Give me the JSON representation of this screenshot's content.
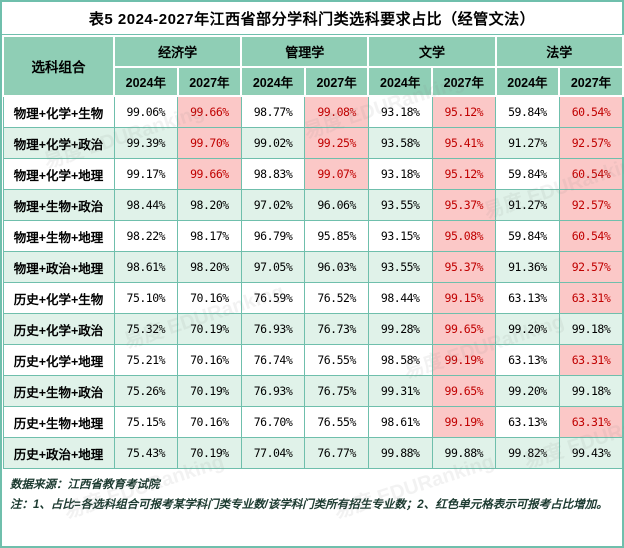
{
  "title": "表5 2024-2027年江西省部分学科门类选科要求占比（经管文法）",
  "colors": {
    "header_green": "#8fceb5",
    "stripe_green": "#e0f2e9",
    "highlight_pink": "#fbc8c7",
    "highlight_red_text": "#c00000",
    "grid_teal": "#6fbfac"
  },
  "table": {
    "corner_header": "选科组合",
    "groups": [
      {
        "key": "economics",
        "label": "经济学"
      },
      {
        "key": "management",
        "label": "管理学"
      },
      {
        "key": "literature",
        "label": "文学"
      },
      {
        "key": "law",
        "label": "法学"
      }
    ],
    "year_headers": [
      "2024年",
      "2027年"
    ],
    "rows": [
      {
        "combo": "物理+化学+生物",
        "values": [
          {
            "v": "99.06%",
            "red": false
          },
          {
            "v": "99.66%",
            "red": true
          },
          {
            "v": "98.77%",
            "red": false
          },
          {
            "v": "99.08%",
            "red": true
          },
          {
            "v": "93.18%",
            "red": false
          },
          {
            "v": "95.12%",
            "red": true
          },
          {
            "v": "59.84%",
            "red": false
          },
          {
            "v": "60.54%",
            "red": true
          }
        ]
      },
      {
        "combo": "物理+化学+政治",
        "values": [
          {
            "v": "99.39%",
            "red": false
          },
          {
            "v": "99.70%",
            "red": true
          },
          {
            "v": "99.02%",
            "red": false
          },
          {
            "v": "99.25%",
            "red": true
          },
          {
            "v": "93.58%",
            "red": false
          },
          {
            "v": "95.41%",
            "red": true
          },
          {
            "v": "91.27%",
            "red": false
          },
          {
            "v": "92.57%",
            "red": true
          }
        ]
      },
      {
        "combo": "物理+化学+地理",
        "values": [
          {
            "v": "99.17%",
            "red": false
          },
          {
            "v": "99.66%",
            "red": true
          },
          {
            "v": "98.83%",
            "red": false
          },
          {
            "v": "99.07%",
            "red": true
          },
          {
            "v": "93.18%",
            "red": false
          },
          {
            "v": "95.12%",
            "red": true
          },
          {
            "v": "59.84%",
            "red": false
          },
          {
            "v": "60.54%",
            "red": true
          }
        ]
      },
      {
        "combo": "物理+生物+政治",
        "values": [
          {
            "v": "98.44%",
            "red": false
          },
          {
            "v": "98.20%",
            "red": false
          },
          {
            "v": "97.02%",
            "red": false
          },
          {
            "v": "96.06%",
            "red": false
          },
          {
            "v": "93.55%",
            "red": false
          },
          {
            "v": "95.37%",
            "red": true
          },
          {
            "v": "91.27%",
            "red": false
          },
          {
            "v": "92.57%",
            "red": true
          }
        ]
      },
      {
        "combo": "物理+生物+地理",
        "values": [
          {
            "v": "98.22%",
            "red": false
          },
          {
            "v": "98.17%",
            "red": false
          },
          {
            "v": "96.79%",
            "red": false
          },
          {
            "v": "95.85%",
            "red": false
          },
          {
            "v": "93.15%",
            "red": false
          },
          {
            "v": "95.08%",
            "red": true
          },
          {
            "v": "59.84%",
            "red": false
          },
          {
            "v": "60.54%",
            "red": true
          }
        ]
      },
      {
        "combo": "物理+政治+地理",
        "values": [
          {
            "v": "98.61%",
            "red": false
          },
          {
            "v": "98.20%",
            "red": false
          },
          {
            "v": "97.05%",
            "red": false
          },
          {
            "v": "96.03%",
            "red": false
          },
          {
            "v": "93.55%",
            "red": false
          },
          {
            "v": "95.37%",
            "red": true
          },
          {
            "v": "91.36%",
            "red": false
          },
          {
            "v": "92.57%",
            "red": true
          }
        ]
      },
      {
        "combo": "历史+化学+生物",
        "values": [
          {
            "v": "75.10%",
            "red": false
          },
          {
            "v": "70.16%",
            "red": false
          },
          {
            "v": "76.59%",
            "red": false
          },
          {
            "v": "76.52%",
            "red": false
          },
          {
            "v": "98.44%",
            "red": false
          },
          {
            "v": "99.15%",
            "red": true
          },
          {
            "v": "63.13%",
            "red": false
          },
          {
            "v": "63.31%",
            "red": true
          }
        ]
      },
      {
        "combo": "历史+化学+政治",
        "values": [
          {
            "v": "75.32%",
            "red": false
          },
          {
            "v": "70.19%",
            "red": false
          },
          {
            "v": "76.93%",
            "red": false
          },
          {
            "v": "76.73%",
            "red": false
          },
          {
            "v": "99.28%",
            "red": false
          },
          {
            "v": "99.65%",
            "red": true
          },
          {
            "v": "99.20%",
            "red": false
          },
          {
            "v": "99.18%",
            "red": false
          }
        ]
      },
      {
        "combo": "历史+化学+地理",
        "values": [
          {
            "v": "75.21%",
            "red": false
          },
          {
            "v": "70.16%",
            "red": false
          },
          {
            "v": "76.74%",
            "red": false
          },
          {
            "v": "76.55%",
            "red": false
          },
          {
            "v": "98.58%",
            "red": false
          },
          {
            "v": "99.19%",
            "red": true
          },
          {
            "v": "63.13%",
            "red": false
          },
          {
            "v": "63.31%",
            "red": true
          }
        ]
      },
      {
        "combo": "历史+生物+政治",
        "values": [
          {
            "v": "75.26%",
            "red": false
          },
          {
            "v": "70.19%",
            "red": false
          },
          {
            "v": "76.93%",
            "red": false
          },
          {
            "v": "76.75%",
            "red": false
          },
          {
            "v": "99.31%",
            "red": false
          },
          {
            "v": "99.65%",
            "red": true
          },
          {
            "v": "99.20%",
            "red": false
          },
          {
            "v": "99.18%",
            "red": false
          }
        ]
      },
      {
        "combo": "历史+生物+地理",
        "values": [
          {
            "v": "75.15%",
            "red": false
          },
          {
            "v": "70.16%",
            "red": false
          },
          {
            "v": "76.70%",
            "red": false
          },
          {
            "v": "76.55%",
            "red": false
          },
          {
            "v": "98.61%",
            "red": false
          },
          {
            "v": "99.19%",
            "red": true
          },
          {
            "v": "63.13%",
            "red": false
          },
          {
            "v": "63.31%",
            "red": true
          }
        ]
      },
      {
        "combo": "历史+政治+地理",
        "values": [
          {
            "v": "75.43%",
            "red": false
          },
          {
            "v": "70.19%",
            "red": false
          },
          {
            "v": "77.04%",
            "red": false
          },
          {
            "v": "76.77%",
            "red": false
          },
          {
            "v": "99.88%",
            "red": false
          },
          {
            "v": "99.88%",
            "red": false
          },
          {
            "v": "99.82%",
            "red": false
          },
          {
            "v": "99.43%",
            "red": false
          }
        ]
      }
    ]
  },
  "footer": {
    "source": "数据来源：江西省教育考试院",
    "note": "注：1、占比=各选科组合可报考某学科门类专业数/该学科门类所有招生专业数；2、红色单元格表示可报考占比增加。"
  },
  "watermark": {
    "text": "易度 EDURanking"
  }
}
